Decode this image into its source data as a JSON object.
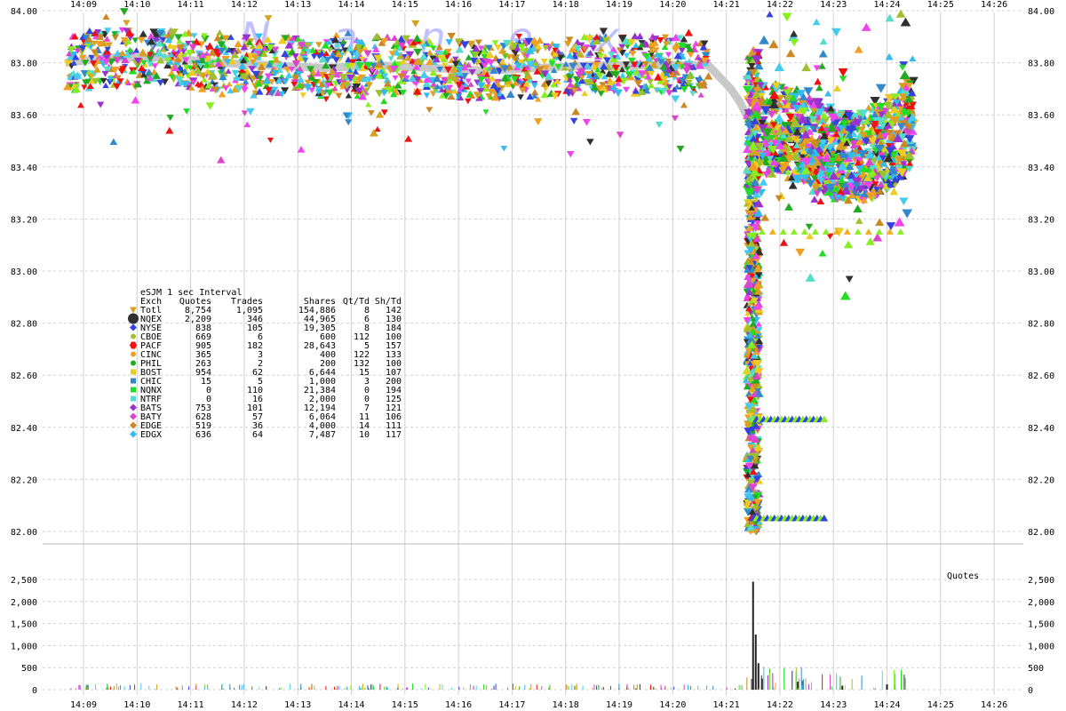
{
  "chart_data": {
    "type": "scatter",
    "watermark": "Nanex",
    "time_axis": {
      "ticks": [
        "14:09",
        "14:10",
        "14:11",
        "14:12",
        "14:13",
        "14:14",
        "14:15",
        "14:16",
        "14:17",
        "14:18",
        "14:19",
        "14:20",
        "14:21",
        "14:22",
        "14:23",
        "14:24",
        "14:25",
        "14:26"
      ]
    },
    "price_axis": {
      "range": [
        81.7,
        84.0
      ],
      "ticks": [
        "84.00",
        "83.80",
        "83.60",
        "83.40",
        "83.20",
        "83.00",
        "82.80",
        "82.60",
        "82.40",
        "82.20",
        "82.00"
      ]
    },
    "volume_axis": {
      "label": "Quotes",
      "range": [
        0,
        2700
      ],
      "ticks": [
        "2,500",
        "2,000",
        "1,500",
        "1,000",
        "500",
        "0"
      ]
    },
    "legend": {
      "title": "eSJM 1 sec Interval",
      "headers": [
        "Exch",
        "Quotes",
        "Trades",
        "Shares",
        "Qt/Td",
        "Sh/Td"
      ],
      "rows": [
        {
          "exch": "Totl",
          "quotes": "8,754",
          "trades": "1,095",
          "shares": "154,886",
          "qt_td": "8",
          "sh_td": "142",
          "color": "#d8a020",
          "marker": "triangle-down"
        },
        {
          "exch": "NQEX",
          "quotes": "2,209",
          "trades": "346",
          "shares": "44,965",
          "qt_td": "6",
          "sh_td": "130",
          "color": "#303030",
          "marker": "circle"
        },
        {
          "exch": "NYSE",
          "quotes": "838",
          "trades": "105",
          "shares": "19,305",
          "qt_td": "8",
          "sh_td": "184",
          "color": "#3344dd",
          "marker": "diamond"
        },
        {
          "exch": "CBOE",
          "quotes": "669",
          "trades": "6",
          "shares": "600",
          "qt_td": "112",
          "sh_td": "100",
          "color": "#a0c030",
          "marker": "circle"
        },
        {
          "exch": "PACF",
          "quotes": "905",
          "trades": "182",
          "shares": "28,643",
          "qt_td": "5",
          "sh_td": "157",
          "color": "#ee1111",
          "marker": "hexagon"
        },
        {
          "exch": "CINC",
          "quotes": "365",
          "trades": "3",
          "shares": "400",
          "qt_td": "122",
          "sh_td": "133",
          "color": "#f0a020",
          "marker": "circle"
        },
        {
          "exch": "PHIL",
          "quotes": "263",
          "trades": "2",
          "shares": "200",
          "qt_td": "132",
          "sh_td": "100",
          "color": "#22aa22",
          "marker": "circle"
        },
        {
          "exch": "BOST",
          "quotes": "954",
          "trades": "62",
          "shares": "6,644",
          "qt_td": "15",
          "sh_td": "107",
          "color": "#eecc22",
          "marker": "square"
        },
        {
          "exch": "CHIC",
          "quotes": "15",
          "trades": "5",
          "shares": "1,000",
          "qt_td": "3",
          "sh_td": "200",
          "color": "#3388cc",
          "marker": "square"
        },
        {
          "exch": "NQNX",
          "quotes": "0",
          "trades": "110",
          "shares": "21,384",
          "qt_td": "0",
          "sh_td": "194",
          "color": "#22dd22",
          "marker": "square"
        },
        {
          "exch": "NTRF",
          "quotes": "0",
          "trades": "16",
          "shares": "2,000",
          "qt_td": "0",
          "sh_td": "125",
          "color": "#55ddcc",
          "marker": "square"
        },
        {
          "exch": "BATS",
          "quotes": "753",
          "trades": "101",
          "shares": "12,194",
          "qt_td": "7",
          "sh_td": "121",
          "color": "#9933cc",
          "marker": "diamond"
        },
        {
          "exch": "BATY",
          "quotes": "628",
          "trades": "57",
          "shares": "6,064",
          "qt_td": "11",
          "sh_td": "106",
          "color": "#dd44cc",
          "marker": "diamond"
        },
        {
          "exch": "EDGE",
          "quotes": "519",
          "trades": "36",
          "shares": "4,000",
          "qt_td": "14",
          "sh_td": "111",
          "color": "#cc8822",
          "marker": "diamond"
        },
        {
          "exch": "EDGX",
          "quotes": "636",
          "trades": "64",
          "shares": "7,487",
          "qt_td": "10",
          "sh_td": "117",
          "color": "#33bbee",
          "marker": "diamond"
        }
      ]
    },
    "nbbo_series": [
      {
        "t": "14:08:40",
        "p": 83.8
      },
      {
        "t": "14:09:30",
        "p": 83.82
      },
      {
        "t": "14:10:30",
        "p": 83.82
      },
      {
        "t": "14:11:30",
        "p": 83.8
      },
      {
        "t": "14:12:30",
        "p": 83.79
      },
      {
        "t": "14:13:30",
        "p": 83.78
      },
      {
        "t": "14:14:30",
        "p": 83.79
      },
      {
        "t": "14:15:30",
        "p": 83.78
      },
      {
        "t": "14:16:30",
        "p": 83.77
      },
      {
        "t": "14:17:30",
        "p": 83.78
      },
      {
        "t": "14:18:30",
        "p": 83.79
      },
      {
        "t": "14:19:30",
        "p": 83.79
      },
      {
        "t": "14:20:40",
        "p": 83.79
      },
      {
        "t": "14:21:05",
        "p": 83.7
      },
      {
        "t": "14:21:15",
        "p": 83.65
      },
      {
        "t": "14:21:30",
        "p": 83.55
      },
      {
        "t": "14:22:00",
        "p": 83.54
      },
      {
        "t": "14:22:30",
        "p": 83.5
      },
      {
        "t": "14:23:00",
        "p": 83.45
      },
      {
        "t": "14:23:30",
        "p": 83.44
      },
      {
        "t": "14:24:00",
        "p": 83.48
      },
      {
        "t": "14:24:30",
        "p": 83.58
      }
    ],
    "nbbo_color": "#c8c8c8",
    "volume_spikes": [
      {
        "t": "14:21:30",
        "v": 2450
      },
      {
        "t": "14:21:33",
        "v": 1250
      },
      {
        "t": "14:21:36",
        "v": 600
      },
      {
        "t": "14:21:40",
        "v": 250
      },
      {
        "t": "14:22:20",
        "v": 180
      },
      {
        "t": "14:23:10",
        "v": 90
      },
      {
        "t": "14:24:00",
        "v": 120
      }
    ]
  }
}
